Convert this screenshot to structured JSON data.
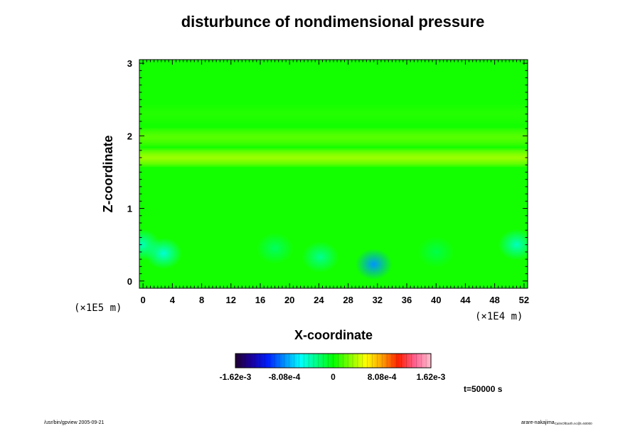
{
  "chart_data": {
    "type": "heatmap",
    "title": "disturbunce of nondimensional pressure",
    "xlabel": "X-coordinate",
    "ylabel": "Z-coordinate",
    "x_range": [
      -0.5,
      52.5
    ],
    "y_range": [
      -0.1,
      3.05
    ],
    "x_ticks": [
      0,
      4,
      8,
      12,
      16,
      20,
      24,
      28,
      32,
      36,
      40,
      44,
      48,
      52
    ],
    "y_ticks": [
      0,
      1,
      2,
      3
    ],
    "x_tick_labels": [
      "0",
      "4",
      "8",
      "12",
      "16",
      "20",
      "24",
      "28",
      "32",
      "36",
      "40",
      "44",
      "48",
      "52"
    ],
    "y_tick_labels": [
      "0",
      "1",
      "2",
      "3"
    ],
    "x_unit_label": "(×1E4 m)",
    "y_unit_label": "(×1E5 m)",
    "colorbar": {
      "min": -0.00162,
      "max": 0.00162,
      "tick_values": [
        -0.00162,
        -0.000808,
        0,
        0.000808,
        0.00162
      ],
      "tick_labels": [
        "-1.62e-3",
        "-8.08e-4",
        "0",
        "8.08e-4",
        "1.62e-3"
      ],
      "colors": [
        "#200030",
        "#1a00a0",
        "#0020ff",
        "#0090ff",
        "#00ffff",
        "#00ff80",
        "#00ff00",
        "#80ff00",
        "#ffff00",
        "#ffa000",
        "#ff2000",
        "#ff6090",
        "#ffc0d0"
      ],
      "position": "bottom"
    },
    "background_value": 4e-05,
    "features": [
      {
        "kind": "band",
        "z": 1.7,
        "value": 0.00045
      },
      {
        "kind": "band",
        "z": 1.98,
        "value": 0.00025
      },
      {
        "kind": "band",
        "z": 2.3,
        "value": 0.0001
      },
      {
        "kind": "blob",
        "x": 31.5,
        "z": 0.23,
        "value": -0.0008
      },
      {
        "kind": "blob",
        "x": 2.8,
        "z": 0.38,
        "value": -0.00045
      },
      {
        "kind": "blob",
        "x": 24.2,
        "z": 0.33,
        "value": -0.0003
      },
      {
        "kind": "blob",
        "x": 51.0,
        "z": 0.5,
        "value": -0.0004
      },
      {
        "kind": "blob",
        "x": -0.2,
        "z": 0.5,
        "value": -0.0004
      },
      {
        "kind": "blob",
        "x": 18.0,
        "z": 0.45,
        "value": -0.0002
      },
      {
        "kind": "blob",
        "x": 40.0,
        "z": 0.4,
        "value": -0.00015
      }
    ]
  },
  "time_label": "t=50000 s",
  "footer_left": "/usr/bin/gpview 2005-09-21",
  "footer_right": "arare-nakajima",
  "footer_right_sub": "CalmOfEarth.nc@t=50000"
}
